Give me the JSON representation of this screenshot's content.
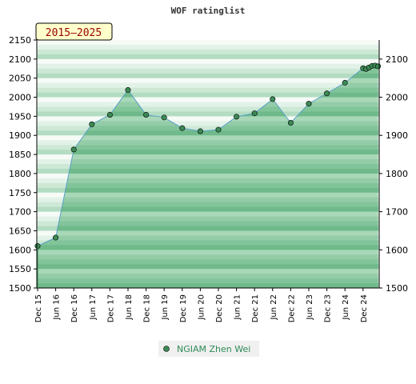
{
  "chart_data": {
    "type": "area",
    "title": "WOF ratinglist",
    "badge": "2015–2025",
    "ylim": [
      1500,
      2150
    ],
    "yticks_left": [
      1500,
      1550,
      1600,
      1650,
      1700,
      1750,
      1800,
      1850,
      1900,
      1950,
      2000,
      2050,
      2100,
      2150
    ],
    "yticks_right": [
      1500,
      1600,
      1700,
      1800,
      1900,
      2000,
      2100
    ],
    "xtick_labels": [
      "Dec 15",
      "Jun 16",
      "Dec 16",
      "Jun 17",
      "Dec 17",
      "Jun 18",
      "Dec 18",
      "Jun 19",
      "Dec 19",
      "Jun 20",
      "Dec 20",
      "Jun 21",
      "Dec 21",
      "Jun 22",
      "Dec 22",
      "Jun 23",
      "Dec 23",
      "Jun 24",
      "Dec 24"
    ],
    "grid": true,
    "legend_position": "bottom",
    "colors": {
      "fill": "#7cc297",
      "line": "#5aa0c8",
      "marker": "#3c8a55",
      "badge_bg": "#ffffcc"
    },
    "series": [
      {
        "name": "NGIAM Zhen Wei",
        "points": [
          {
            "x": 0,
            "y": 1610
          },
          {
            "x": 1,
            "y": 1632
          },
          {
            "x": 2,
            "y": 1863
          },
          {
            "x": 3,
            "y": 1929
          },
          {
            "x": 4,
            "y": 1954
          },
          {
            "x": 5,
            "y": 2019
          },
          {
            "x": 6,
            "y": 1954
          },
          {
            "x": 7,
            "y": 1947
          },
          {
            "x": 8,
            "y": 1919
          },
          {
            "x": 9,
            "y": 1911
          },
          {
            "x": 10,
            "y": 1915
          },
          {
            "x": 11,
            "y": 1949
          },
          {
            "x": 12,
            "y": 1958
          },
          {
            "x": 13,
            "y": 1995
          },
          {
            "x": 14,
            "y": 1933
          },
          {
            "x": 15,
            "y": 1983
          },
          {
            "x": 16,
            "y": 2010
          },
          {
            "x": 17,
            "y": 2038
          },
          {
            "x": 18,
            "y": 2076
          },
          {
            "x": 18.17,
            "y": 2074
          },
          {
            "x": 18.33,
            "y": 2078
          },
          {
            "x": 18.5,
            "y": 2082
          },
          {
            "x": 18.67,
            "y": 2083
          },
          {
            "x": 18.83,
            "y": 2081
          }
        ]
      }
    ]
  }
}
